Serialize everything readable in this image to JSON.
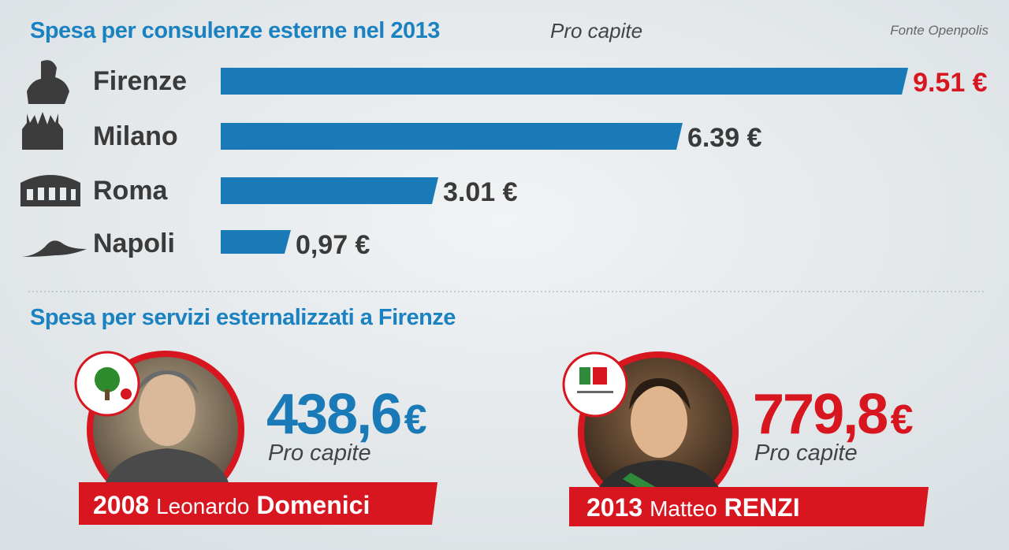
{
  "chart_data": {
    "type": "bar",
    "title": "Spesa per consulenze esterne nel 2013",
    "subtitle": "Pro capite",
    "source": "Fonte Openpolis",
    "categories": [
      "Firenze",
      "Milano",
      "Roma",
      "Napoli"
    ],
    "values": [
      9.51,
      6.39,
      3.01,
      0.97
    ],
    "value_labels": [
      "9.51 €",
      "6.39 €",
      "3.01 €",
      "0,97 €"
    ],
    "color": "#1a7ab8",
    "value_label_colors": [
      "#d7161f",
      "#3a3a3a",
      "#3a3a3a",
      "#3a3a3a"
    ]
  },
  "section": {
    "title": "Spesa per servizi esternalizzati a Firenze",
    "cards": [
      {
        "amount": "438,6",
        "currency": "€",
        "per_capita": "Pro capite",
        "year": "2008",
        "first_name": "Leonardo",
        "last_name": "Domenici",
        "color": "#1a7ab8"
      },
      {
        "amount": "779,8",
        "currency": "€",
        "per_capita": "Pro capite",
        "year": "2013",
        "first_name": "Matteo",
        "last_name": "RENZI",
        "color": "#d7161f"
      }
    ]
  }
}
